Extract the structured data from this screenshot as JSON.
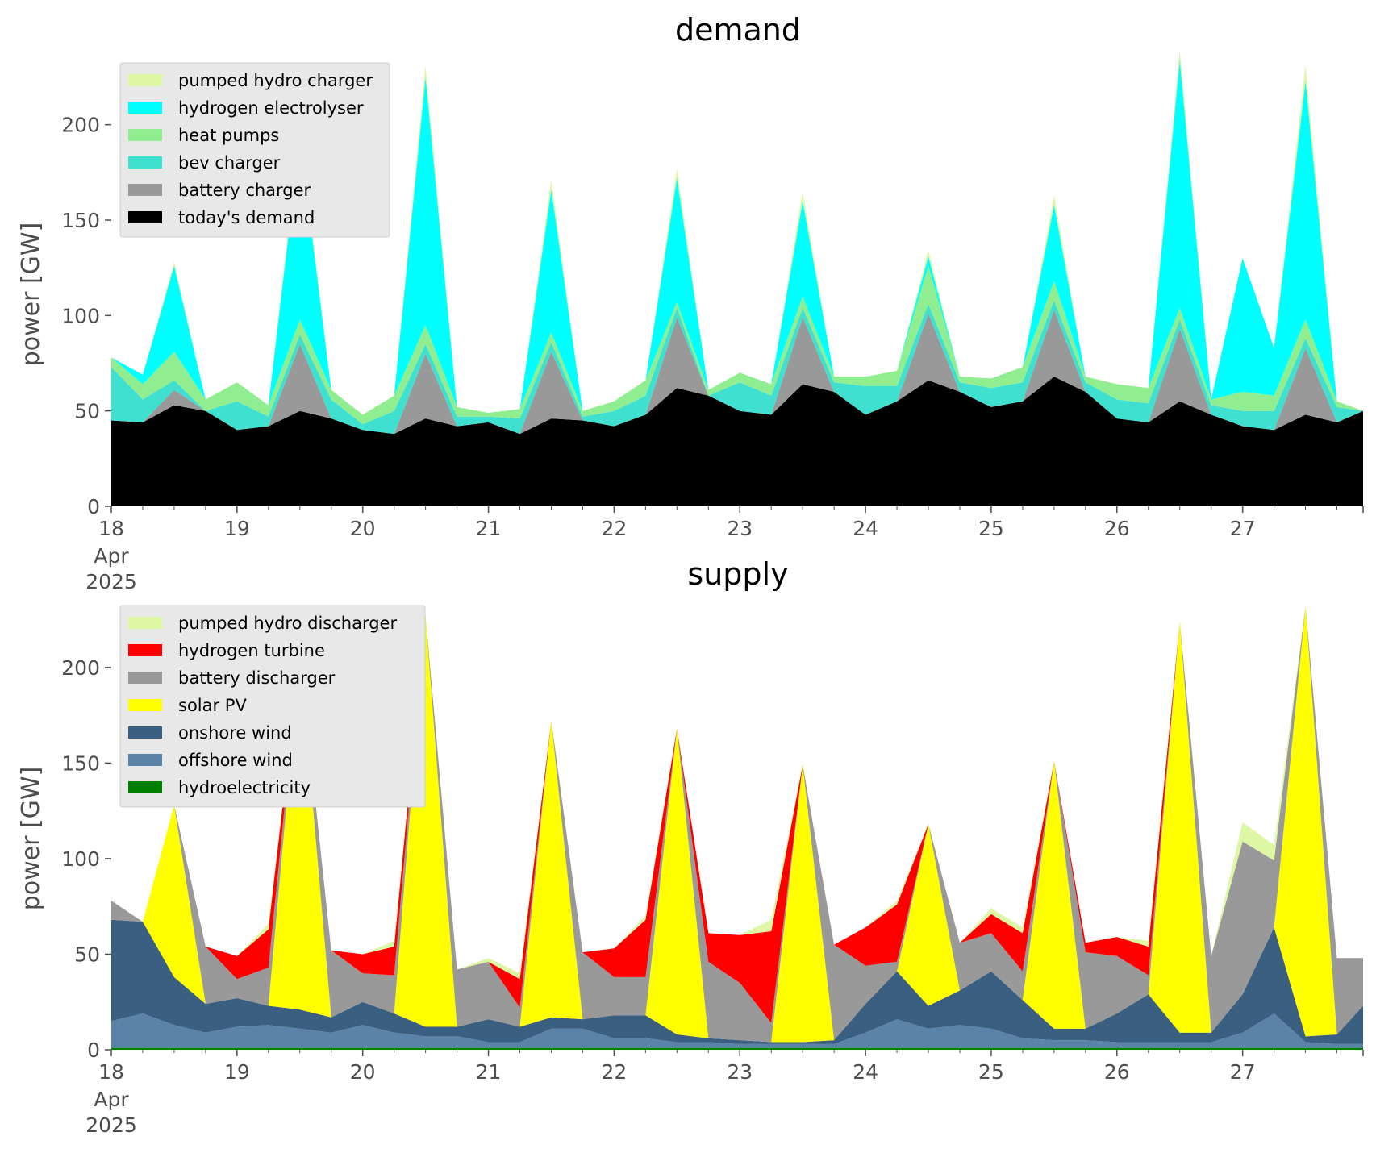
{
  "chart_data": [
    {
      "type": "area",
      "stacked": true,
      "title": "demand",
      "ylabel": "power [GW]",
      "xlabel": "",
      "ylim": [
        0,
        240
      ],
      "yticks": [
        0,
        50,
        100,
        150,
        200
      ],
      "xlim": [
        "2025-04-18T00:00",
        "2025-04-27T23:00"
      ],
      "xticks": [
        {
          "date": "2025-04-18",
          "label": "18",
          "sub": [
            "Apr",
            "2025"
          ]
        },
        {
          "date": "2025-04-19",
          "label": "19"
        },
        {
          "date": "2025-04-20",
          "label": "20"
        },
        {
          "date": "2025-04-21",
          "label": "21"
        },
        {
          "date": "2025-04-22",
          "label": "22"
        },
        {
          "date": "2025-04-23",
          "label": "23"
        },
        {
          "date": "2025-04-24",
          "label": "24"
        },
        {
          "date": "2025-04-25",
          "label": "25"
        },
        {
          "date": "2025-04-26",
          "label": "26"
        },
        {
          "date": "2025-04-27",
          "label": "27"
        }
      ],
      "grid": false,
      "legend_position": "top-left",
      "x": [
        "2025-04-18T00:00",
        "2025-04-18T06:00",
        "2025-04-18T12:00",
        "2025-04-18T18:00",
        "2025-04-19T00:00",
        "2025-04-19T06:00",
        "2025-04-19T12:00",
        "2025-04-19T18:00",
        "2025-04-20T00:00",
        "2025-04-20T06:00",
        "2025-04-20T12:00",
        "2025-04-20T18:00",
        "2025-04-21T00:00",
        "2025-04-21T06:00",
        "2025-04-21T12:00",
        "2025-04-21T18:00",
        "2025-04-22T00:00",
        "2025-04-22T06:00",
        "2025-04-22T12:00",
        "2025-04-22T18:00",
        "2025-04-23T00:00",
        "2025-04-23T06:00",
        "2025-04-23T12:00",
        "2025-04-23T18:00",
        "2025-04-24T00:00",
        "2025-04-24T06:00",
        "2025-04-24T12:00",
        "2025-04-24T18:00",
        "2025-04-25T00:00",
        "2025-04-25T06:00",
        "2025-04-25T12:00",
        "2025-04-25T18:00",
        "2025-04-26T00:00",
        "2025-04-26T06:00",
        "2025-04-26T12:00",
        "2025-04-26T18:00",
        "2025-04-27T00:00",
        "2025-04-27T06:00",
        "2025-04-27T12:00",
        "2025-04-27T18:00",
        "2025-04-27T23:00"
      ],
      "series": [
        {
          "name": "today's demand",
          "color": "#000000",
          "values": [
            45,
            44,
            53,
            50,
            40,
            42,
            50,
            46,
            40,
            38,
            46,
            42,
            44,
            38,
            46,
            45,
            42,
            48,
            62,
            58,
            50,
            48,
            64,
            60,
            48,
            55,
            66,
            60,
            52,
            55,
            68,
            60,
            46,
            44,
            55,
            48,
            42,
            40,
            48,
            44,
            50
          ]
        },
        {
          "name": "battery charger",
          "color": "#999999",
          "values": [
            0,
            0,
            8,
            0,
            0,
            0,
            35,
            0,
            0,
            0,
            34,
            0,
            0,
            0,
            35,
            0,
            0,
            0,
            37,
            0,
            0,
            0,
            35,
            0,
            0,
            0,
            35,
            0,
            0,
            0,
            35,
            0,
            0,
            0,
            38,
            0,
            0,
            0,
            35,
            0,
            0
          ]
        },
        {
          "name": "bev charger",
          "color": "#40e0d0",
          "values": [
            28,
            12,
            5,
            0,
            15,
            5,
            5,
            10,
            3,
            12,
            5,
            5,
            3,
            8,
            5,
            2,
            8,
            10,
            5,
            0,
            15,
            10,
            5,
            5,
            15,
            8,
            5,
            5,
            10,
            10,
            5,
            5,
            10,
            10,
            5,
            5,
            8,
            10,
            5,
            8,
            0
          ]
        },
        {
          "name": "heat pumps",
          "color": "#90ee90",
          "values": [
            5,
            8,
            15,
            6,
            10,
            6,
            8,
            5,
            5,
            8,
            10,
            5,
            2,
            5,
            5,
            3,
            5,
            8,
            3,
            3,
            5,
            6,
            6,
            3,
            5,
            8,
            20,
            3,
            5,
            8,
            10,
            3,
            8,
            8,
            6,
            3,
            10,
            8,
            10,
            3,
            0
          ]
        },
        {
          "name": "hydrogen electrolyser",
          "color": "#00ffff",
          "values": [
            0,
            5,
            45,
            0,
            0,
            0,
            95,
            0,
            0,
            0,
            130,
            0,
            0,
            0,
            75,
            0,
            0,
            0,
            65,
            0,
            0,
            0,
            50,
            0,
            0,
            0,
            5,
            0,
            0,
            0,
            40,
            0,
            0,
            0,
            130,
            0,
            70,
            25,
            125,
            0,
            0
          ]
        },
        {
          "name": "pumped hydro charger",
          "color": "#ddf7a4",
          "values": [
            0,
            0,
            2,
            0,
            0,
            0,
            5,
            0,
            0,
            0,
            6,
            0,
            0,
            0,
            5,
            0,
            0,
            0,
            5,
            0,
            0,
            0,
            5,
            0,
            0,
            0,
            3,
            0,
            0,
            0,
            5,
            0,
            0,
            0,
            5,
            0,
            0,
            0,
            8,
            0,
            0
          ]
        }
      ],
      "legend_order": [
        "pumped hydro charger",
        "hydrogen electrolyser",
        "heat pumps",
        "bev charger",
        "battery charger",
        "today's demand"
      ]
    },
    {
      "type": "area",
      "stacked": true,
      "title": "supply",
      "ylabel": "power [GW]",
      "xlabel": "",
      "ylim": [
        0,
        240
      ],
      "yticks": [
        0,
        50,
        100,
        150,
        200
      ],
      "xlim": [
        "2025-04-18T00:00",
        "2025-04-27T23:00"
      ],
      "xticks": [
        {
          "date": "2025-04-18",
          "label": "18",
          "sub": [
            "Apr",
            "2025"
          ]
        },
        {
          "date": "2025-04-19",
          "label": "19"
        },
        {
          "date": "2025-04-20",
          "label": "20"
        },
        {
          "date": "2025-04-21",
          "label": "21"
        },
        {
          "date": "2025-04-22",
          "label": "22"
        },
        {
          "date": "2025-04-23",
          "label": "23"
        },
        {
          "date": "2025-04-24",
          "label": "24"
        },
        {
          "date": "2025-04-25",
          "label": "25"
        },
        {
          "date": "2025-04-26",
          "label": "26"
        },
        {
          "date": "2025-04-27",
          "label": "27"
        }
      ],
      "grid": false,
      "legend_position": "top-left",
      "x": [
        "2025-04-18T00:00",
        "2025-04-18T06:00",
        "2025-04-18T12:00",
        "2025-04-18T18:00",
        "2025-04-19T00:00",
        "2025-04-19T06:00",
        "2025-04-19T12:00",
        "2025-04-19T18:00",
        "2025-04-20T00:00",
        "2025-04-20T06:00",
        "2025-04-20T12:00",
        "2025-04-20T18:00",
        "2025-04-21T00:00",
        "2025-04-21T06:00",
        "2025-04-21T12:00",
        "2025-04-21T18:00",
        "2025-04-22T00:00",
        "2025-04-22T06:00",
        "2025-04-22T12:00",
        "2025-04-22T18:00",
        "2025-04-23T00:00",
        "2025-04-23T06:00",
        "2025-04-23T12:00",
        "2025-04-23T18:00",
        "2025-04-24T00:00",
        "2025-04-24T06:00",
        "2025-04-24T12:00",
        "2025-04-24T18:00",
        "2025-04-25T00:00",
        "2025-04-25T06:00",
        "2025-04-25T12:00",
        "2025-04-25T18:00",
        "2025-04-26T00:00",
        "2025-04-26T06:00",
        "2025-04-26T12:00",
        "2025-04-26T18:00",
        "2025-04-27T00:00",
        "2025-04-27T06:00",
        "2025-04-27T12:00",
        "2025-04-27T18:00",
        "2025-04-27T23:00"
      ],
      "series": [
        {
          "name": "hydroelectricity",
          "color": "#008000",
          "values": [
            1,
            1,
            1,
            1,
            1,
            1,
            1,
            1,
            1,
            1,
            1,
            1,
            1,
            1,
            1,
            1,
            1,
            1,
            1,
            1,
            1,
            1,
            1,
            1,
            1,
            1,
            1,
            1,
            1,
            1,
            1,
            1,
            1,
            1,
            1,
            1,
            1,
            1,
            1,
            1,
            1
          ]
        },
        {
          "name": "offshore wind",
          "color": "#5b83a8",
          "values": [
            14,
            18,
            12,
            8,
            11,
            12,
            10,
            8,
            12,
            8,
            6,
            6,
            3,
            3,
            10,
            10,
            5,
            5,
            3,
            3,
            2,
            2,
            2,
            2,
            8,
            15,
            10,
            12,
            10,
            5,
            4,
            4,
            3,
            3,
            3,
            3,
            8,
            18,
            3,
            2,
            2
          ]
        },
        {
          "name": "onshore wind",
          "color": "#3b5f80",
          "values": [
            53,
            48,
            25,
            15,
            15,
            10,
            10,
            8,
            12,
            10,
            5,
            5,
            12,
            8,
            6,
            5,
            12,
            12,
            4,
            2,
            2,
            1,
            1,
            2,
            15,
            25,
            12,
            18,
            30,
            20,
            6,
            6,
            15,
            25,
            5,
            5,
            20,
            45,
            3,
            5,
            20
          ]
        },
        {
          "name": "solar PV",
          "color": "#ffff00",
          "values": [
            0,
            0,
            90,
            0,
            0,
            0,
            185,
            0,
            0,
            0,
            215,
            0,
            0,
            0,
            155,
            0,
            0,
            0,
            160,
            0,
            0,
            0,
            145,
            0,
            0,
            0,
            95,
            0,
            0,
            0,
            140,
            0,
            0,
            0,
            215,
            0,
            0,
            0,
            225,
            0,
            0
          ]
        },
        {
          "name": "battery discharger",
          "color": "#999999",
          "values": [
            10,
            0,
            0,
            30,
            10,
            20,
            0,
            35,
            15,
            20,
            0,
            30,
            30,
            10,
            0,
            35,
            20,
            20,
            0,
            40,
            30,
            10,
            0,
            50,
            20,
            5,
            0,
            25,
            20,
            15,
            0,
            40,
            30,
            10,
            0,
            40,
            80,
            35,
            0,
            40,
            25
          ]
        },
        {
          "name": "hydrogen turbine",
          "color": "#ff0000",
          "values": [
            0,
            0,
            0,
            0,
            12,
            20,
            0,
            0,
            10,
            15,
            0,
            0,
            0,
            15,
            0,
            0,
            15,
            30,
            0,
            15,
            25,
            48,
            0,
            0,
            20,
            30,
            0,
            0,
            10,
            20,
            0,
            5,
            10,
            15,
            0,
            0,
            0,
            0,
            0,
            0,
            0
          ]
        },
        {
          "name": "pumped hydro discharger",
          "color": "#ddf7a4",
          "values": [
            0,
            0,
            0,
            0,
            0,
            3,
            0,
            0,
            0,
            3,
            0,
            0,
            2,
            3,
            0,
            0,
            0,
            2,
            0,
            0,
            0,
            6,
            0,
            0,
            0,
            2,
            0,
            0,
            3,
            3,
            0,
            0,
            0,
            3,
            0,
            0,
            10,
            8,
            0,
            0,
            0
          ]
        }
      ],
      "legend_order": [
        "pumped hydro discharger",
        "hydrogen turbine",
        "battery discharger",
        "solar PV",
        "onshore wind",
        "offshore wind",
        "hydroelectricity"
      ]
    }
  ]
}
